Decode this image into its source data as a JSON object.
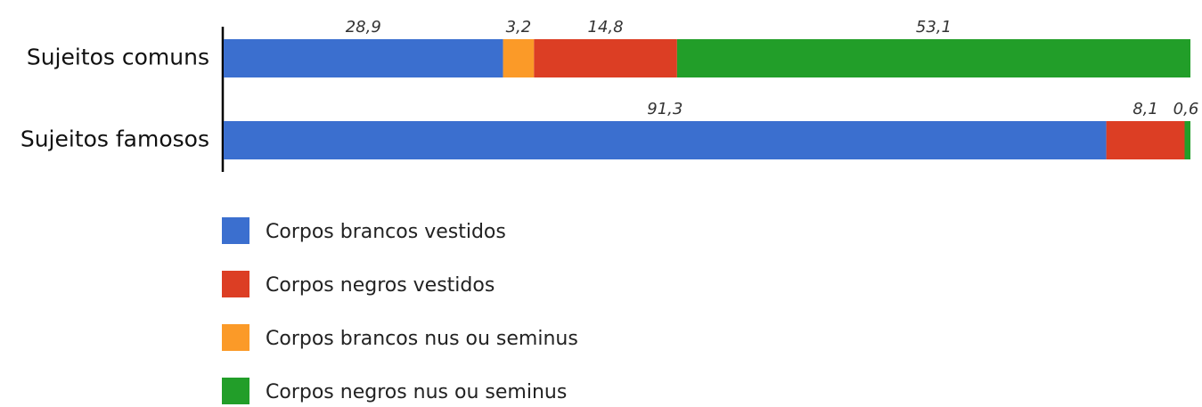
{
  "chart_data": {
    "type": "stacked_barh",
    "categories": [
      "Sujeitos comuns",
      "Sujeitos famosos"
    ],
    "xlim": [
      0,
      100
    ],
    "series": [
      {
        "name": "Corpos brancos vestidos",
        "color": "#3b6fcf",
        "values": [
          28.9,
          91.3
        ],
        "value_labels": [
          "28,9",
          "91,3"
        ]
      },
      {
        "name": "Corpos brancos nus ou seminus",
        "color": "#fb9a28",
        "values": [
          3.2,
          null
        ],
        "value_labels": [
          "3,2",
          null
        ]
      },
      {
        "name": "Corpos negros vestidos",
        "color": "#dc3e24",
        "values": [
          14.8,
          8.1
        ],
        "value_labels": [
          "14,8",
          "8,1"
        ]
      },
      {
        "name": "Corpos negros nus ou seminus",
        "color": "#229e29",
        "values": [
          53.1,
          0.6
        ],
        "value_labels": [
          "53,1",
          "0,6"
        ]
      }
    ]
  }
}
